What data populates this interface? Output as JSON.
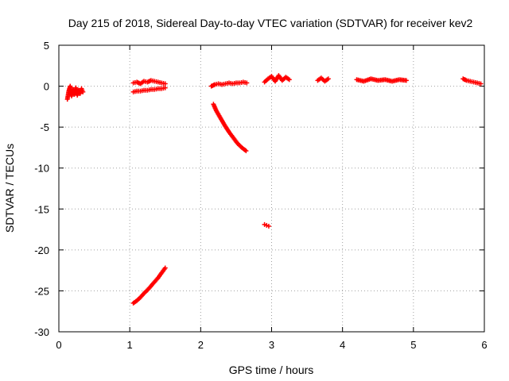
{
  "chart_data": {
    "type": "scatter",
    "title": "Day 215 of 2018, Sidereal Day-to-day VTEC variation (SDTVAR) for receiver kev2",
    "xlabel": "GPS time / hours",
    "ylabel": "SDTVAR / TECUs",
    "xlim": [
      0,
      6
    ],
    "ylim": [
      -30,
      5
    ],
    "xticks": [
      0,
      1,
      2,
      3,
      4,
      5,
      6
    ],
    "yticks": [
      5,
      0,
      -5,
      -10,
      -15,
      -20,
      -25,
      -30
    ],
    "grid": true,
    "marker": "plus",
    "series": [
      {
        "color": "#ff0000",
        "segments": [
          {
            "x": [
              0.12,
              0.14,
              0.16,
              0.18,
              0.2,
              0.22,
              0.24,
              0.26,
              0.28,
              0.3,
              0.32,
              0.34
            ],
            "y": [
              -1.6,
              -0.6,
              0.0,
              -1.2,
              -0.4,
              -1.0,
              -0.2,
              -1.1,
              -0.5,
              -0.9,
              -0.3,
              -0.7
            ]
          },
          {
            "x": [
              1.05,
              1.1,
              1.15,
              1.2,
              1.25,
              1.3,
              1.35,
              1.4,
              1.45,
              1.5
            ],
            "y": [
              0.4,
              0.5,
              0.3,
              0.6,
              0.5,
              0.7,
              0.6,
              0.5,
              0.4,
              0.3
            ]
          },
          {
            "x": [
              1.05,
              1.1,
              1.15,
              1.2,
              1.25,
              1.3,
              1.35,
              1.4,
              1.45,
              1.5
            ],
            "y": [
              -0.7,
              -0.6,
              -0.6,
              -0.5,
              -0.5,
              -0.4,
              -0.4,
              -0.3,
              -0.3,
              -0.2
            ]
          },
          {
            "x": [
              1.05,
              1.1,
              1.15,
              1.2,
              1.25,
              1.3,
              1.35,
              1.4,
              1.45,
              1.5
            ],
            "y": [
              -26.5,
              -26.2,
              -25.8,
              -25.3,
              -24.9,
              -24.4,
              -23.9,
              -23.4,
              -22.8,
              -22.2
            ]
          },
          {
            "x": [
              2.15,
              2.2,
              2.25,
              2.3,
              2.35,
              2.4,
              2.45,
              2.5,
              2.55,
              2.6,
              2.65
            ],
            "y": [
              0.0,
              0.2,
              0.3,
              0.2,
              0.3,
              0.4,
              0.3,
              0.4,
              0.4,
              0.5,
              0.4
            ]
          },
          {
            "x": [
              2.18,
              2.22,
              2.28,
              2.34,
              2.4,
              2.46,
              2.52,
              2.58,
              2.64
            ],
            "y": [
              -2.2,
              -3.0,
              -3.9,
              -4.8,
              -5.6,
              -6.3,
              -7.0,
              -7.5,
              -7.9
            ]
          },
          {
            "x": [
              2.9,
              2.93,
              2.96
            ],
            "y": [
              -16.9,
              -17.0,
              -17.1
            ]
          },
          {
            "x": [
              2.9,
              2.95,
              3.0,
              3.05,
              3.1,
              3.15,
              3.2,
              3.25
            ],
            "y": [
              0.5,
              0.9,
              1.2,
              0.6,
              1.3,
              0.7,
              1.1,
              0.8
            ]
          },
          {
            "x": [
              3.65,
              3.7,
              3.75,
              3.8
            ],
            "y": [
              0.7,
              1.0,
              0.6,
              0.9
            ]
          },
          {
            "x": [
              4.2,
              4.3,
              4.4,
              4.5,
              4.6,
              4.7,
              4.8,
              4.9
            ],
            "y": [
              0.8,
              0.6,
              0.9,
              0.7,
              0.8,
              0.6,
              0.8,
              0.7
            ]
          },
          {
            "x": [
              5.7,
              5.75,
              5.8,
              5.85,
              5.9,
              5.95
            ],
            "y": [
              0.9,
              0.7,
              0.6,
              0.5,
              0.4,
              0.3
            ]
          }
        ]
      }
    ]
  }
}
